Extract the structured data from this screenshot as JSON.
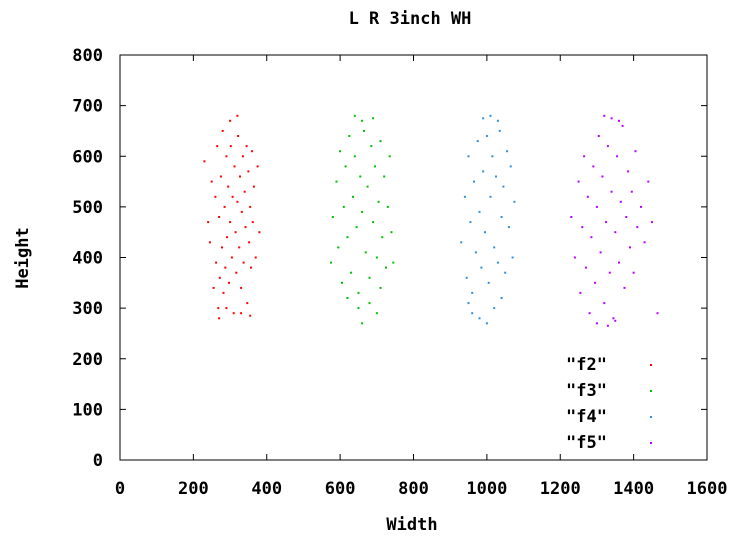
{
  "chart_data": {
    "type": "scatter",
    "title": "L R 3inch WH",
    "xlabel": "Width",
    "ylabel": "Height",
    "xlim": [
      0,
      1600
    ],
    "ylim": [
      0,
      800
    ],
    "xticks": [
      "0",
      "200",
      "400",
      "600",
      "800",
      "1000",
      "1200",
      "1400",
      "1600"
    ],
    "yticks": [
      "0",
      "100",
      "200",
      "300",
      "400",
      "500",
      "600",
      "700",
      "800"
    ],
    "grid": false,
    "legend_position": "bottom-right",
    "series": [
      {
        "name": "\"f2\"",
        "color": "#ff0000",
        "points": [
          [
            230,
            590
          ],
          [
            240,
            470
          ],
          [
            245,
            430
          ],
          [
            250,
            550
          ],
          [
            255,
            340
          ],
          [
            260,
            520
          ],
          [
            262,
            390
          ],
          [
            265,
            620
          ],
          [
            268,
            300
          ],
          [
            270,
            480
          ],
          [
            272,
            360
          ],
          [
            275,
            560
          ],
          [
            278,
            420
          ],
          [
            280,
            650
          ],
          [
            282,
            330
          ],
          [
            285,
            500
          ],
          [
            287,
            380
          ],
          [
            290,
            600
          ],
          [
            292,
            440
          ],
          [
            295,
            540
          ],
          [
            297,
            350
          ],
          [
            300,
            470
          ],
          [
            302,
            620
          ],
          [
            305,
            400
          ],
          [
            307,
            520
          ],
          [
            310,
            290
          ],
          [
            312,
            580
          ],
          [
            315,
            450
          ],
          [
            317,
            370
          ],
          [
            320,
            510
          ],
          [
            322,
            640
          ],
          [
            325,
            420
          ],
          [
            327,
            560
          ],
          [
            330,
            340
          ],
          [
            332,
            490
          ],
          [
            335,
            600
          ],
          [
            337,
            390
          ],
          [
            340,
            530
          ],
          [
            342,
            460
          ],
          [
            345,
            620
          ],
          [
            347,
            310
          ],
          [
            350,
            570
          ],
          [
            352,
            430
          ],
          [
            355,
            500
          ],
          [
            357,
            380
          ],
          [
            360,
            610
          ],
          [
            362,
            470
          ],
          [
            365,
            540
          ],
          [
            370,
            400
          ],
          [
            375,
            580
          ],
          [
            380,
            450
          ],
          [
            300,
            670
          ],
          [
            320,
            680
          ],
          [
            290,
            300
          ],
          [
            330,
            290
          ],
          [
            270,
            280
          ],
          [
            355,
            285
          ]
        ]
      },
      {
        "name": "\"f3\"",
        "color": "#00c000",
        "points": [
          [
            575,
            390
          ],
          [
            580,
            480
          ],
          [
            590,
            550
          ],
          [
            595,
            420
          ],
          [
            600,
            610
          ],
          [
            605,
            350
          ],
          [
            610,
            500
          ],
          [
            615,
            580
          ],
          [
            620,
            440
          ],
          [
            625,
            640
          ],
          [
            630,
            370
          ],
          [
            635,
            520
          ],
          [
            640,
            600
          ],
          [
            645,
            460
          ],
          [
            650,
            330
          ],
          [
            655,
            560
          ],
          [
            660,
            490
          ],
          [
            665,
            650
          ],
          [
            670,
            410
          ],
          [
            675,
            540
          ],
          [
            680,
            360
          ],
          [
            685,
            620
          ],
          [
            690,
            470
          ],
          [
            695,
            580
          ],
          [
            700,
            400
          ],
          [
            705,
            510
          ],
          [
            710,
            630
          ],
          [
            715,
            440
          ],
          [
            720,
            560
          ],
          [
            725,
            380
          ],
          [
            730,
            500
          ],
          [
            735,
            600
          ],
          [
            740,
            450
          ],
          [
            745,
            390
          ],
          [
            640,
            680
          ],
          [
            660,
            670
          ],
          [
            690,
            675
          ],
          [
            650,
            300
          ],
          [
            660,
            270
          ],
          [
            680,
            310
          ],
          [
            700,
            290
          ],
          [
            620,
            320
          ],
          [
            710,
            340
          ]
        ]
      },
      {
        "name": "\"f4\"",
        "color": "#2f90e0",
        "points": [
          [
            930,
            430
          ],
          [
            940,
            520
          ],
          [
            945,
            360
          ],
          [
            950,
            600
          ],
          [
            955,
            470
          ],
          [
            960,
            330
          ],
          [
            965,
            550
          ],
          [
            970,
            410
          ],
          [
            975,
            630
          ],
          [
            980,
            490
          ],
          [
            985,
            380
          ],
          [
            990,
            570
          ],
          [
            995,
            450
          ],
          [
            1000,
            640
          ],
          [
            1005,
            350
          ],
          [
            1010,
            520
          ],
          [
            1015,
            600
          ],
          [
            1020,
            420
          ],
          [
            1025,
            560
          ],
          [
            1030,
            390
          ],
          [
            1035,
            650
          ],
          [
            1040,
            480
          ],
          [
            1045,
            540
          ],
          [
            1050,
            370
          ],
          [
            1055,
            610
          ],
          [
            1060,
            460
          ],
          [
            1065,
            580
          ],
          [
            1070,
            400
          ],
          [
            1075,
            510
          ],
          [
            990,
            675
          ],
          [
            1010,
            680
          ],
          [
            1030,
            670
          ],
          [
            960,
            290
          ],
          [
            980,
            280
          ],
          [
            1000,
            270
          ],
          [
            1020,
            300
          ],
          [
            950,
            310
          ],
          [
            1040,
            320
          ]
        ]
      },
      {
        "name": "\"f5\"",
        "color": "#c000ff",
        "points": [
          [
            1230,
            480
          ],
          [
            1240,
            400
          ],
          [
            1250,
            550
          ],
          [
            1255,
            330
          ],
          [
            1260,
            460
          ],
          [
            1265,
            600
          ],
          [
            1270,
            380
          ],
          [
            1275,
            520
          ],
          [
            1280,
            290
          ],
          [
            1285,
            440
          ],
          [
            1290,
            580
          ],
          [
            1295,
            350
          ],
          [
            1300,
            500
          ],
          [
            1305,
            640
          ],
          [
            1310,
            410
          ],
          [
            1315,
            560
          ],
          [
            1320,
            310
          ],
          [
            1325,
            470
          ],
          [
            1330,
            620
          ],
          [
            1335,
            370
          ],
          [
            1340,
            530
          ],
          [
            1345,
            280
          ],
          [
            1350,
            450
          ],
          [
            1355,
            600
          ],
          [
            1360,
            390
          ],
          [
            1365,
            510
          ],
          [
            1370,
            660
          ],
          [
            1375,
            340
          ],
          [
            1380,
            480
          ],
          [
            1385,
            570
          ],
          [
            1390,
            420
          ],
          [
            1395,
            530
          ],
          [
            1400,
            370
          ],
          [
            1405,
            610
          ],
          [
            1410,
            460
          ],
          [
            1420,
            500
          ],
          [
            1430,
            430
          ],
          [
            1440,
            550
          ],
          [
            1450,
            470
          ],
          [
            1465,
            290
          ],
          [
            1320,
            680
          ],
          [
            1340,
            675
          ],
          [
            1360,
            670
          ],
          [
            1300,
            270
          ],
          [
            1330,
            265
          ],
          [
            1350,
            275
          ]
        ]
      }
    ]
  }
}
